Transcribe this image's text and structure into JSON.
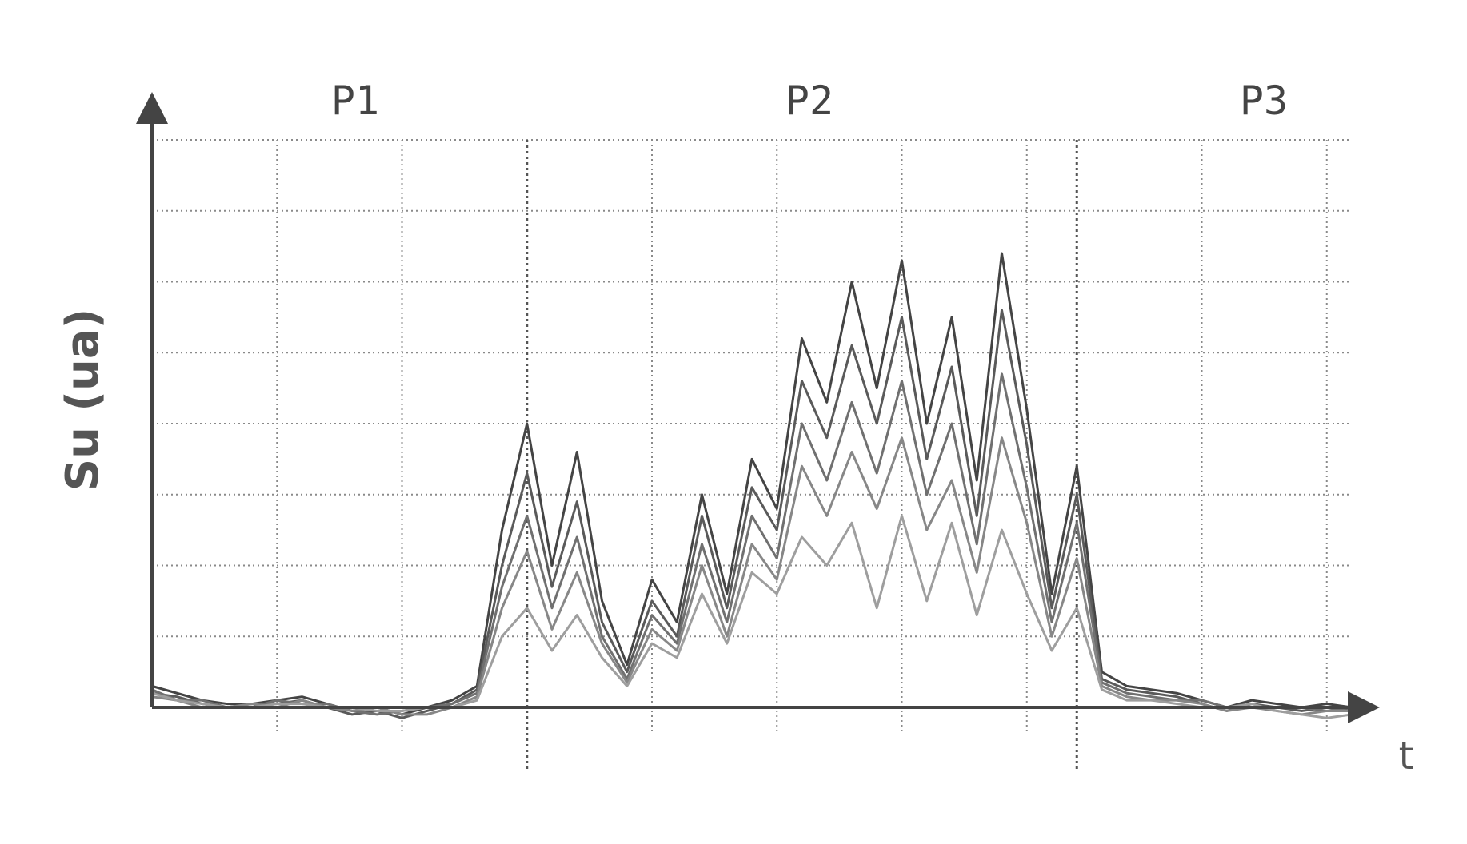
{
  "chart_data": {
    "type": "line",
    "title": "",
    "ylabel": "Su (ua)",
    "xlabel": "t",
    "phases": [
      "P1",
      "P2",
      "P3"
    ],
    "phase_boundaries": [
      30,
      74
    ],
    "xlim": [
      0,
      96
    ],
    "ylim": [
      0,
      8
    ],
    "grid": true,
    "colors": {
      "axis": "#444444",
      "grid": "#8a8a8a",
      "series": [
        "#444444",
        "#5a5a5a",
        "#707070",
        "#878787",
        "#9e9e9e"
      ]
    },
    "x": [
      0,
      2,
      4,
      6,
      8,
      10,
      12,
      14,
      16,
      18,
      20,
      22,
      24,
      26,
      28,
      30,
      32,
      34,
      36,
      38,
      40,
      42,
      44,
      46,
      48,
      50,
      52,
      54,
      56,
      58,
      60,
      62,
      64,
      66,
      68,
      70,
      72,
      74,
      76,
      78,
      80,
      82,
      84,
      86,
      88,
      90,
      92,
      94,
      96
    ],
    "series": [
      {
        "values": [
          0.3,
          0.2,
          0.1,
          0.05,
          0.05,
          0.1,
          0.15,
          0.05,
          -0.05,
          0.0,
          -0.1,
          0.0,
          0.1,
          0.3,
          2.5,
          4.0,
          2.0,
          3.6,
          1.5,
          0.6,
          1.8,
          1.2,
          3.0,
          1.6,
          3.5,
          2.8,
          5.2,
          4.3,
          6.0,
          4.5,
          6.3,
          4.0,
          5.5,
          3.2,
          6.4,
          4.2,
          1.6,
          3.4,
          0.5,
          0.3,
          0.25,
          0.2,
          0.1,
          0.0,
          0.1,
          0.05,
          0.0,
          0.05,
          0.0
        ]
      },
      {
        "values": [
          0.2,
          0.15,
          0.05,
          0.0,
          0.05,
          0.05,
          0.1,
          0.0,
          -0.1,
          -0.05,
          -0.15,
          -0.05,
          0.05,
          0.25,
          2.0,
          3.3,
          1.7,
          2.9,
          1.2,
          0.5,
          1.5,
          1.0,
          2.7,
          1.4,
          3.1,
          2.5,
          4.6,
          3.8,
          5.1,
          4.0,
          5.5,
          3.5,
          4.8,
          2.7,
          5.6,
          3.7,
          1.4,
          3.0,
          0.4,
          0.25,
          0.2,
          0.15,
          0.05,
          -0.05,
          0.05,
          0.0,
          -0.05,
          0.0,
          -0.05
        ]
      },
      {
        "values": [
          0.25,
          0.1,
          0.1,
          0.0,
          0.0,
          0.1,
          0.05,
          0.05,
          -0.05,
          -0.1,
          -0.05,
          0.0,
          0.05,
          0.2,
          1.7,
          2.7,
          1.4,
          2.4,
          1.0,
          0.4,
          1.3,
          0.9,
          2.3,
          1.2,
          2.7,
          2.1,
          4.0,
          3.2,
          4.3,
          3.3,
          4.6,
          3.0,
          4.0,
          2.3,
          4.7,
          3.1,
          1.2,
          2.6,
          0.35,
          0.2,
          0.15,
          0.1,
          0.1,
          0.0,
          0.0,
          0.0,
          0.0,
          -0.05,
          0.0
        ]
      },
      {
        "values": [
          0.15,
          0.1,
          0.0,
          0.0,
          0.05,
          0.0,
          0.1,
          0.0,
          -0.05,
          0.0,
          -0.1,
          -0.1,
          0.0,
          0.15,
          1.4,
          2.2,
          1.1,
          1.9,
          0.9,
          0.35,
          1.1,
          0.8,
          2.0,
          1.0,
          2.3,
          1.8,
          3.4,
          2.7,
          3.6,
          2.8,
          3.8,
          2.5,
          3.2,
          1.9,
          3.8,
          2.6,
          1.0,
          2.1,
          0.3,
          0.15,
          0.1,
          0.1,
          0.05,
          -0.05,
          0.0,
          -0.05,
          -0.1,
          -0.05,
          -0.05
        ]
      },
      {
        "values": [
          0.2,
          0.1,
          0.05,
          0.0,
          0.0,
          0.05,
          0.05,
          0.0,
          0.0,
          -0.05,
          -0.05,
          0.0,
          0.0,
          0.1,
          1.0,
          1.4,
          0.8,
          1.3,
          0.7,
          0.3,
          0.9,
          0.7,
          1.6,
          0.9,
          1.9,
          1.6,
          2.4,
          2.0,
          2.6,
          1.4,
          2.7,
          1.5,
          2.6,
          1.3,
          2.5,
          1.6,
          0.8,
          1.4,
          0.25,
          0.1,
          0.1,
          0.05,
          0.0,
          0.0,
          0.05,
          -0.05,
          -0.1,
          -0.15,
          -0.1
        ]
      }
    ]
  }
}
